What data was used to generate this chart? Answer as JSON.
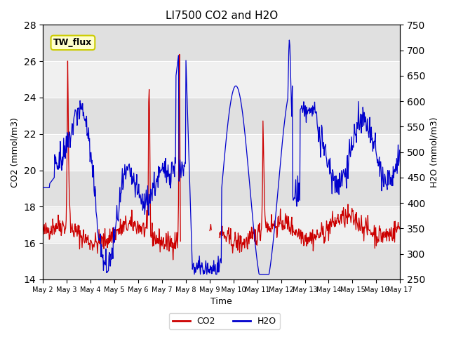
{
  "title": "LI7500 CO2 and H2O",
  "xlabel": "Time",
  "ylabel_left": "CO2 (mmol/m3)",
  "ylabel_right": "H2O (mmol/m3)",
  "ylim_left": [
    14,
    28
  ],
  "ylim_right": [
    250,
    750
  ],
  "yticks_left": [
    14,
    16,
    18,
    20,
    22,
    24,
    26,
    28
  ],
  "yticks_right": [
    250,
    300,
    350,
    400,
    450,
    500,
    550,
    600,
    650,
    700,
    750
  ],
  "xtick_labels": [
    "May 2",
    "May 3",
    "May 4",
    "May 5",
    "May 6",
    "May 7",
    "May 8",
    "May 9",
    "May 10",
    "May 11",
    "May 12",
    "May 13",
    "May 14",
    "May 15",
    "May 16",
    "May 17"
  ],
  "background_color": "#ffffff",
  "plot_bg_color": "#f0f0f0",
  "band_color": "#e0e0e0",
  "co2_color": "#cc0000",
  "h2o_color": "#0000cc",
  "annotation_text": "TW_flux",
  "annotation_bg": "#ffffcc",
  "annotation_border": "#cccc00",
  "legend_co2": "CO2",
  "legend_h2o": "H2O"
}
